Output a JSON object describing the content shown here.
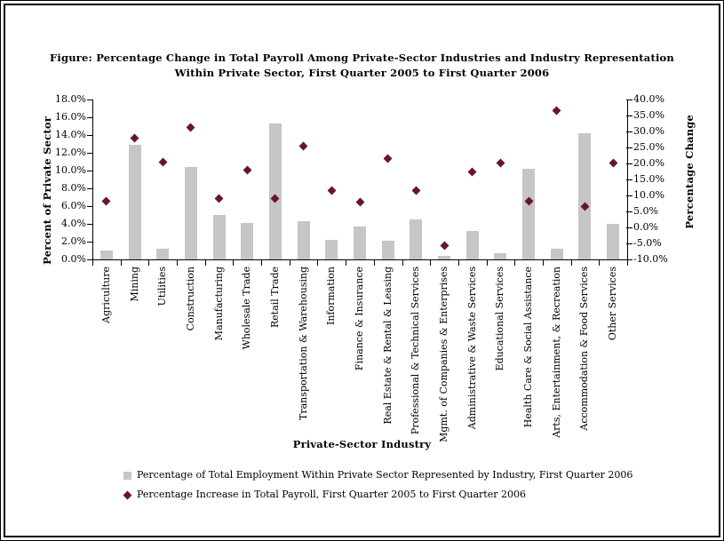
{
  "title": {
    "line1": "Figure: Percentage Change in Total Payroll Among Private-Sector Industries and Industry Representation",
    "line2": "Within Private Sector, First Quarter 2005 to First Quarter 2006"
  },
  "chart_data": {
    "type": "bar",
    "subtype": "combo-bar-and-scatter-diamond",
    "grid": false,
    "categories": [
      "Agriculture",
      "Mining",
      "Utilities",
      "Construction",
      "Manufacturing",
      "Wholesale Trade",
      "Retail Trade",
      "Transportation & Warehousing",
      "Information",
      "Finance & Insurance",
      "Real Estate & Rental & Leasing",
      "Professional & Technical Services",
      "Mgmt. of Companies & Enterprises",
      "Administrative & Waste Services",
      "Educational Services",
      "Health Care & Social Assistance",
      "Arts, Entertainment, & Recreation",
      "Accommodation & Food Services",
      "Other Services"
    ],
    "series": [
      {
        "name": "Percentage of Total Employment Within Private Sector Represented by Industry, First Quarter 2006",
        "type": "bar",
        "axis": "left",
        "color": "#C6C6C6",
        "values": [
          1.0,
          12.9,
          1.2,
          10.4,
          5.0,
          4.1,
          15.3,
          4.3,
          2.2,
          3.7,
          2.1,
          4.5,
          0.4,
          3.2,
          0.7,
          10.2,
          1.2,
          14.2,
          4.0
        ]
      },
      {
        "name": "Percentage Increase in Total Payroll, First Quarter 2005 to First Quarter 2006",
        "type": "scatter",
        "marker": "diamond",
        "axis": "right",
        "color": "#69142F",
        "values": [
          8.3,
          28.0,
          20.3,
          31.3,
          9.0,
          18.0,
          9.0,
          25.5,
          11.5,
          8.0,
          21.5,
          11.5,
          -5.8,
          17.4,
          20.2,
          8.1,
          36.6,
          6.4,
          20.2
        ]
      }
    ],
    "left_axis": {
      "title": "Percent of Private Sector",
      "min": 0,
      "max": 18,
      "step": 2,
      "tick_labels_top_to_bottom": [
        "18.0%",
        "16.0%",
        "14.0%",
        "12.0%",
        "10.0%",
        "8.0%",
        "6.0%",
        "4.0%",
        "2.0%",
        "0.0%"
      ]
    },
    "right_axis": {
      "title": "Percentage Change",
      "min": -10,
      "max": 40,
      "step": 5,
      "tick_labels_top_to_bottom": [
        "40.0%",
        "35.0%",
        "30.0%",
        "25.0%",
        "20.0%",
        "15.0%",
        "10.0%",
        "5.0%",
        "0.0%",
        "-5.0%",
        "-10.0%"
      ]
    },
    "xlabel": "Private-Sector Industry",
    "legend_position": "bottom-left"
  },
  "legend": {
    "items": [
      {
        "marker": "gray-square",
        "label": "Percentage of Total Employment Within Private Sector Represented by Industry, First Quarter 2006"
      },
      {
        "marker": "maroon-diamond",
        "label": "Percentage Increase in Total Payroll, First Quarter 2005 to First Quarter 2006"
      }
    ]
  }
}
